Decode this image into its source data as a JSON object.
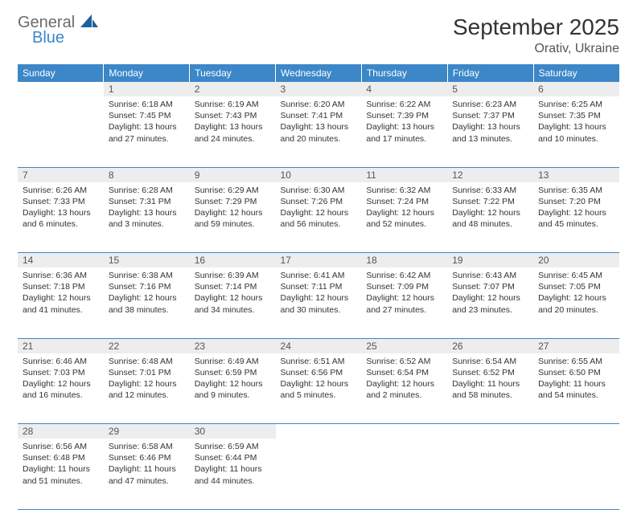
{
  "logo": {
    "text1": "General",
    "text2": "Blue",
    "color1": "#6b6b6b",
    "color2": "#3b87c8",
    "shape_color": "#1f5f9e"
  },
  "title": "September 2025",
  "location": "Orativ, Ukraine",
  "header_bg": "#3b87c8",
  "header_fg": "#ffffff",
  "daynum_bg": "#ededed",
  "divider_color": "#3b87c8",
  "weekdays": [
    "Sunday",
    "Monday",
    "Tuesday",
    "Wednesday",
    "Thursday",
    "Friday",
    "Saturday"
  ],
  "weeks": [
    [
      null,
      {
        "n": "1",
        "sr": "6:18 AM",
        "ss": "7:45 PM",
        "dl": "13 hours and 27 minutes."
      },
      {
        "n": "2",
        "sr": "6:19 AM",
        "ss": "7:43 PM",
        "dl": "13 hours and 24 minutes."
      },
      {
        "n": "3",
        "sr": "6:20 AM",
        "ss": "7:41 PM",
        "dl": "13 hours and 20 minutes."
      },
      {
        "n": "4",
        "sr": "6:22 AM",
        "ss": "7:39 PM",
        "dl": "13 hours and 17 minutes."
      },
      {
        "n": "5",
        "sr": "6:23 AM",
        "ss": "7:37 PM",
        "dl": "13 hours and 13 minutes."
      },
      {
        "n": "6",
        "sr": "6:25 AM",
        "ss": "7:35 PM",
        "dl": "13 hours and 10 minutes."
      }
    ],
    [
      {
        "n": "7",
        "sr": "6:26 AM",
        "ss": "7:33 PM",
        "dl": "13 hours and 6 minutes."
      },
      {
        "n": "8",
        "sr": "6:28 AM",
        "ss": "7:31 PM",
        "dl": "13 hours and 3 minutes."
      },
      {
        "n": "9",
        "sr": "6:29 AM",
        "ss": "7:29 PM",
        "dl": "12 hours and 59 minutes."
      },
      {
        "n": "10",
        "sr": "6:30 AM",
        "ss": "7:26 PM",
        "dl": "12 hours and 56 minutes."
      },
      {
        "n": "11",
        "sr": "6:32 AM",
        "ss": "7:24 PM",
        "dl": "12 hours and 52 minutes."
      },
      {
        "n": "12",
        "sr": "6:33 AM",
        "ss": "7:22 PM",
        "dl": "12 hours and 48 minutes."
      },
      {
        "n": "13",
        "sr": "6:35 AM",
        "ss": "7:20 PM",
        "dl": "12 hours and 45 minutes."
      }
    ],
    [
      {
        "n": "14",
        "sr": "6:36 AM",
        "ss": "7:18 PM",
        "dl": "12 hours and 41 minutes."
      },
      {
        "n": "15",
        "sr": "6:38 AM",
        "ss": "7:16 PM",
        "dl": "12 hours and 38 minutes."
      },
      {
        "n": "16",
        "sr": "6:39 AM",
        "ss": "7:14 PM",
        "dl": "12 hours and 34 minutes."
      },
      {
        "n": "17",
        "sr": "6:41 AM",
        "ss": "7:11 PM",
        "dl": "12 hours and 30 minutes."
      },
      {
        "n": "18",
        "sr": "6:42 AM",
        "ss": "7:09 PM",
        "dl": "12 hours and 27 minutes."
      },
      {
        "n": "19",
        "sr": "6:43 AM",
        "ss": "7:07 PM",
        "dl": "12 hours and 23 minutes."
      },
      {
        "n": "20",
        "sr": "6:45 AM",
        "ss": "7:05 PM",
        "dl": "12 hours and 20 minutes."
      }
    ],
    [
      {
        "n": "21",
        "sr": "6:46 AM",
        "ss": "7:03 PM",
        "dl": "12 hours and 16 minutes."
      },
      {
        "n": "22",
        "sr": "6:48 AM",
        "ss": "7:01 PM",
        "dl": "12 hours and 12 minutes."
      },
      {
        "n": "23",
        "sr": "6:49 AM",
        "ss": "6:59 PM",
        "dl": "12 hours and 9 minutes."
      },
      {
        "n": "24",
        "sr": "6:51 AM",
        "ss": "6:56 PM",
        "dl": "12 hours and 5 minutes."
      },
      {
        "n": "25",
        "sr": "6:52 AM",
        "ss": "6:54 PM",
        "dl": "12 hours and 2 minutes."
      },
      {
        "n": "26",
        "sr": "6:54 AM",
        "ss": "6:52 PM",
        "dl": "11 hours and 58 minutes."
      },
      {
        "n": "27",
        "sr": "6:55 AM",
        "ss": "6:50 PM",
        "dl": "11 hours and 54 minutes."
      }
    ],
    [
      {
        "n": "28",
        "sr": "6:56 AM",
        "ss": "6:48 PM",
        "dl": "11 hours and 51 minutes."
      },
      {
        "n": "29",
        "sr": "6:58 AM",
        "ss": "6:46 PM",
        "dl": "11 hours and 47 minutes."
      },
      {
        "n": "30",
        "sr": "6:59 AM",
        "ss": "6:44 PM",
        "dl": "11 hours and 44 minutes."
      },
      null,
      null,
      null,
      null
    ]
  ],
  "labels": {
    "sunrise": "Sunrise:",
    "sunset": "Sunset:",
    "daylight": "Daylight:"
  },
  "typography": {
    "title_fontsize": 28,
    "location_fontsize": 16,
    "header_fontsize": 12,
    "cell_fontsize": 10.5
  }
}
